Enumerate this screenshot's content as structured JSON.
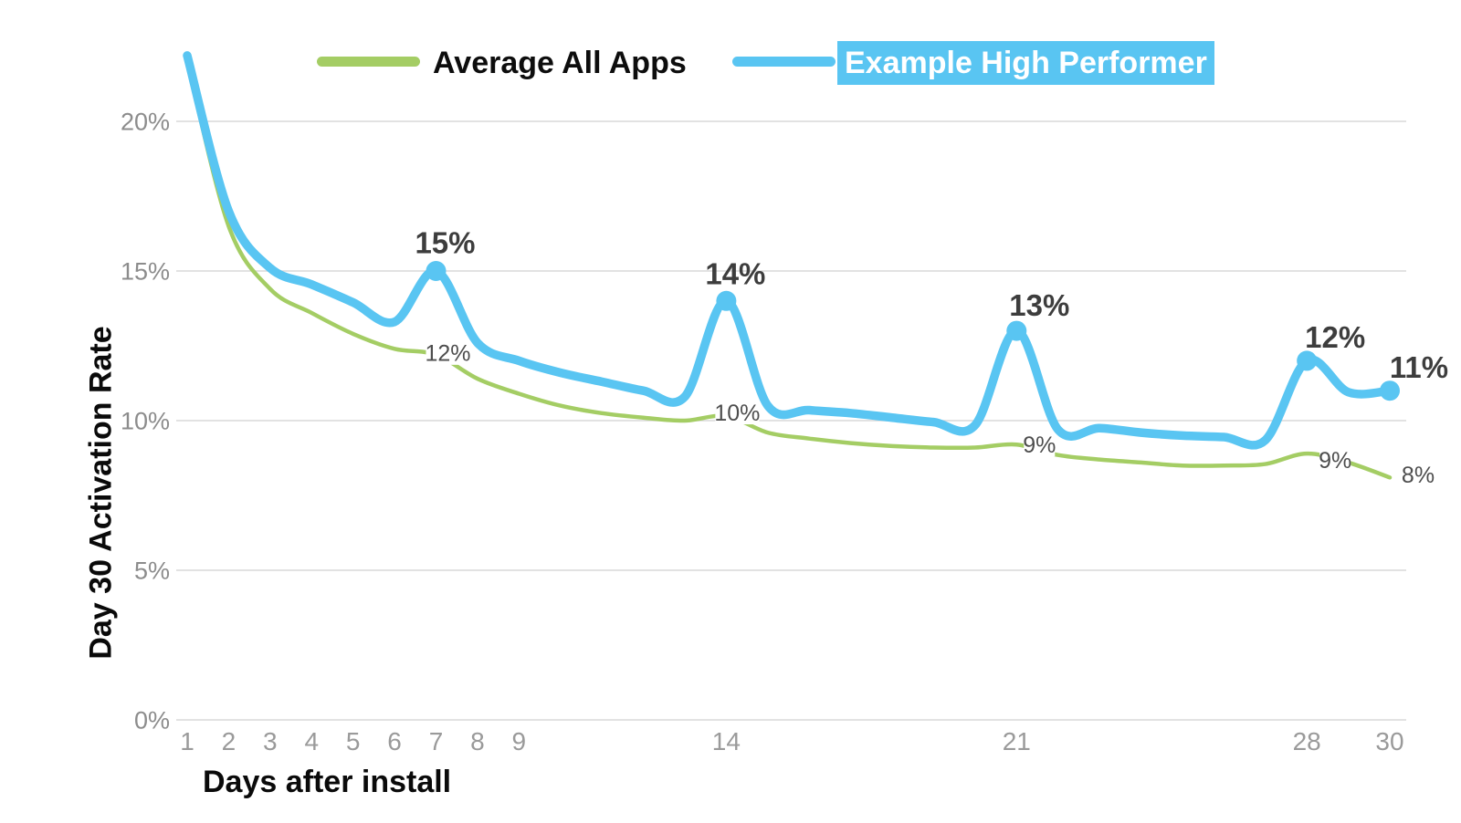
{
  "page": {
    "background": "#ffffff"
  },
  "legend": {
    "items": [
      {
        "label": "Average All Apps",
        "color": "#a4cd64",
        "highlighted": false
      },
      {
        "label": "Example High Performer",
        "color": "#59c5f2",
        "highlighted": true
      }
    ]
  },
  "axes": {
    "x_title": "Days after install",
    "y_title": "Day 30 Activation Rate"
  },
  "chart_data": {
    "type": "line",
    "title": "",
    "xlabel": "Days after install",
    "ylabel": "Day 30 Activation Rate",
    "grid": "horizontal",
    "legend_position": "top",
    "xlim": [
      1,
      30
    ],
    "ylim": [
      0,
      22.5
    ],
    "x": [
      1,
      2,
      3,
      4,
      5,
      6,
      7,
      8,
      9,
      10,
      11,
      12,
      13,
      14,
      15,
      16,
      17,
      18,
      19,
      20,
      21,
      22,
      23,
      24,
      25,
      26,
      27,
      28,
      29,
      30
    ],
    "x_axis_ticks": [
      1,
      2,
      3,
      4,
      5,
      6,
      7,
      8,
      9,
      14,
      21,
      28,
      30
    ],
    "y_axis_ticks": [
      {
        "value": 0,
        "label": "0%"
      },
      {
        "value": 5,
        "label": "5%"
      },
      {
        "value": 10,
        "label": "10%"
      },
      {
        "value": 15,
        "label": "15%"
      },
      {
        "value": 20,
        "label": "20%"
      }
    ],
    "style": {
      "grid_color": "#d8d8d8",
      "y_tick_color": "#8c8c8c",
      "x_tick_color": "#9a9a9a",
      "peak_label_color": "#3d3d3d",
      "inline_label_color": "#4d4d4d"
    },
    "series": [
      {
        "name": "Average All Apps",
        "color": "#a4cd64",
        "width": 4.5,
        "values": [
          22.0,
          16.5,
          14.4,
          13.6,
          12.9,
          12.4,
          12.2,
          11.4,
          10.9,
          10.5,
          10.25,
          10.1,
          10.0,
          10.15,
          9.6,
          9.4,
          9.25,
          9.15,
          9.1,
          9.1,
          9.2,
          8.85,
          8.7,
          8.6,
          8.5,
          8.5,
          8.55,
          8.9,
          8.6,
          8.1
        ],
        "markers": [],
        "point_labels": [
          {
            "day": 7,
            "text": "12%",
            "dx": 13,
            "dy": -2
          },
          {
            "day": 14,
            "text": "10%",
            "dx": 12,
            "dy": -4
          },
          {
            "day": 21,
            "text": "9%",
            "dx": 25,
            "dy": 0
          },
          {
            "day": 28,
            "text": "9%",
            "dx": 31,
            "dy": 7
          },
          {
            "day": 30,
            "text": "8%",
            "dx": 31,
            "dy": -3
          }
        ]
      },
      {
        "name": "Example High Performer",
        "color": "#59c5f2",
        "width": 9.5,
        "values": [
          22.2,
          17.0,
          15.1,
          14.55,
          13.95,
          13.3,
          15.0,
          12.6,
          12.0,
          11.6,
          11.3,
          11.0,
          10.8,
          14.0,
          10.5,
          10.35,
          10.25,
          10.1,
          9.95,
          9.85,
          13.0,
          9.7,
          9.75,
          9.6,
          9.5,
          9.45,
          9.35,
          12.0,
          10.95,
          11.0
        ],
        "markers": [
          7,
          14,
          21,
          28,
          30
        ],
        "point_labels": [
          {
            "day": 7,
            "text": "15%",
            "dx": 10,
            "dy": -31
          },
          {
            "day": 14,
            "text": "14%",
            "dx": 10,
            "dy": -30
          },
          {
            "day": 21,
            "text": "13%",
            "dx": 25,
            "dy": -28
          },
          {
            "day": 28,
            "text": "12%",
            "dx": 31,
            "dy": -26
          },
          {
            "day": 30,
            "text": "11%",
            "dx": 32,
            "dy": -26
          }
        ]
      }
    ]
  }
}
